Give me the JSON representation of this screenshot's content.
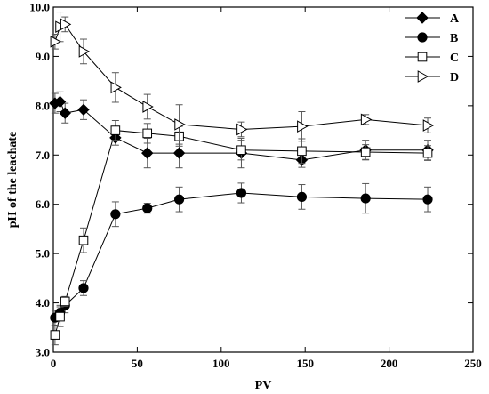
{
  "chart_data": {
    "type": "line",
    "title": "",
    "xlabel": "PV",
    "ylabel": "pH of the leachate",
    "xlim": [
      0,
      250
    ],
    "ylim": [
      3.0,
      10.0
    ],
    "xticks": [
      0,
      50,
      100,
      150,
      200,
      250
    ],
    "xtick_labels": [
      "0",
      "50",
      "100",
      "150",
      "200",
      "250"
    ],
    "yticks": [
      3.0,
      4.0,
      5.0,
      6.0,
      7.0,
      8.0,
      9.0,
      10.0
    ],
    "ytick_labels": [
      "3.0",
      "4.0",
      "5.0",
      "6.0",
      "7.0",
      "8.0",
      "9.0",
      "10.0"
    ],
    "grid": false,
    "legend_position": "top-right",
    "series": [
      {
        "name": "A",
        "marker": "diamond-filled",
        "x": [
          1,
          4,
          7,
          18,
          37,
          56,
          75,
          112,
          148,
          186,
          223
        ],
        "y": [
          8.05,
          8.08,
          7.85,
          7.92,
          7.35,
          7.04,
          7.04,
          7.04,
          6.9,
          7.1,
          7.1
        ],
        "err": [
          0.2,
          0.2,
          0.2,
          0.2,
          0.15,
          0.3,
          0.3,
          0.3,
          0.15,
          0.2,
          0.2
        ]
      },
      {
        "name": "B",
        "marker": "circle-filled",
        "x": [
          1,
          4,
          7,
          18,
          37,
          56,
          75,
          112,
          148,
          186,
          223
        ],
        "y": [
          3.7,
          3.8,
          3.95,
          4.3,
          5.8,
          5.92,
          6.1,
          6.23,
          6.15,
          6.12,
          6.1
        ],
        "err": [
          0.15,
          0.15,
          0.15,
          0.15,
          0.25,
          0.1,
          0.25,
          0.2,
          0.25,
          0.3,
          0.25
        ]
      },
      {
        "name": "C",
        "marker": "square-open",
        "x": [
          1,
          4,
          7,
          18,
          37,
          56,
          75,
          112,
          148,
          186,
          223
        ],
        "y": [
          3.35,
          3.72,
          4.03,
          5.27,
          7.5,
          7.44,
          7.38,
          7.1,
          7.08,
          7.06,
          7.04
        ],
        "err": [
          0.2,
          0.2,
          0.1,
          0.25,
          0.2,
          0.2,
          0.2,
          0.2,
          0.25,
          0.15,
          0.15
        ]
      },
      {
        "name": "D",
        "marker": "triangle-right-open",
        "x": [
          1,
          4,
          7,
          18,
          37,
          56,
          75,
          112,
          148,
          186,
          223
        ],
        "y": [
          9.3,
          9.6,
          9.65,
          9.1,
          8.37,
          7.98,
          7.62,
          7.52,
          7.58,
          7.72,
          7.6
        ],
        "err": [
          0.15,
          0.3,
          0.15,
          0.25,
          0.3,
          0.25,
          0.4,
          0.15,
          0.3,
          0.1,
          0.15
        ]
      }
    ]
  }
}
